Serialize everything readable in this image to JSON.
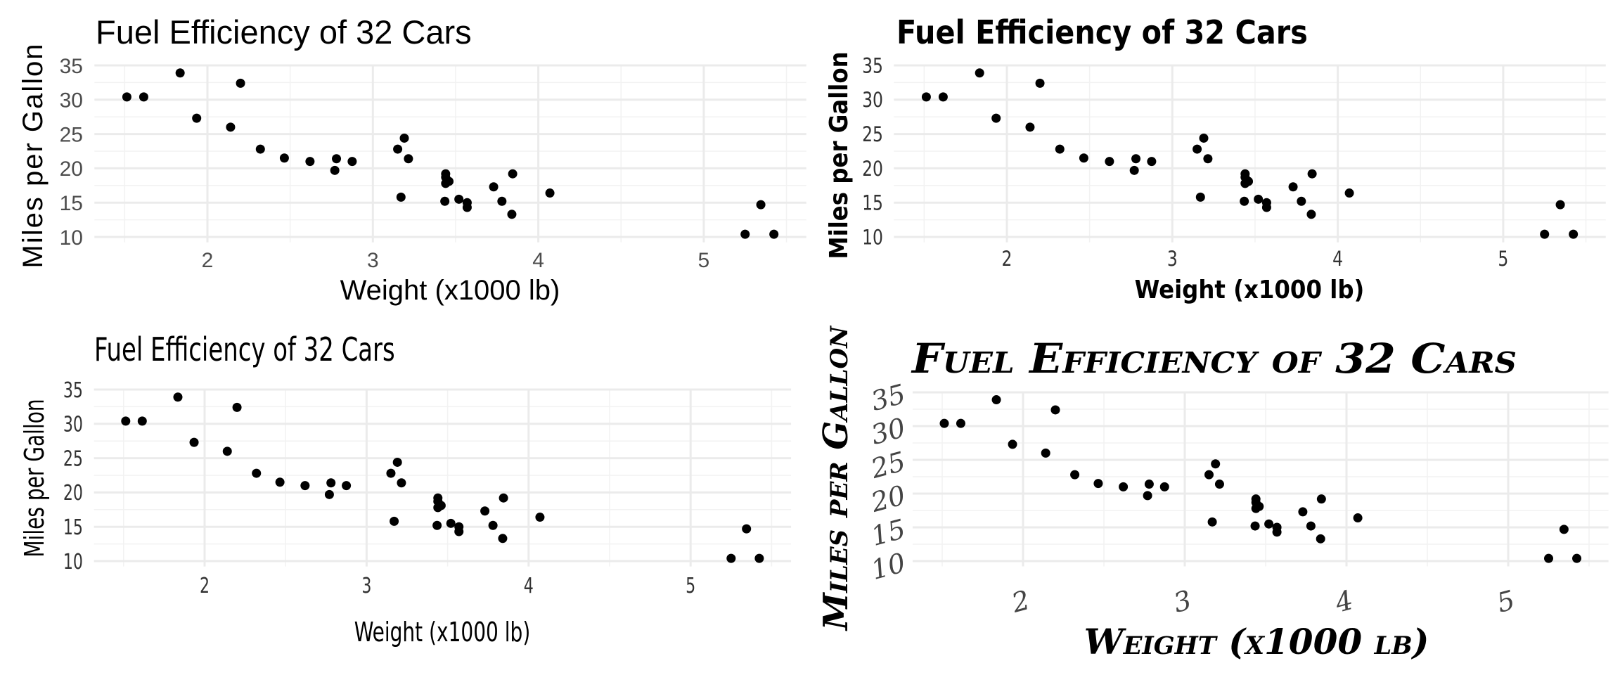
{
  "chart_data": [
    {
      "type": "scatter",
      "title": "Fuel Efficiency of 32 Cars",
      "xlabel": "Weight (x1000 lb)",
      "ylabel": "Miles per Gallon",
      "xticks": [
        2,
        3,
        4,
        5
      ],
      "yticks": [
        10,
        15,
        20,
        25,
        30,
        35
      ],
      "xlim": [
        1.317,
        5.62
      ],
      "ylim": [
        9.225,
        35.075
      ],
      "grid": true,
      "legend": "none",
      "x": [
        2.62,
        2.875,
        2.32,
        3.215,
        3.44,
        3.46,
        3.57,
        3.19,
        3.15,
        3.44,
        3.44,
        4.07,
        3.73,
        3.78,
        5.25,
        5.424,
        5.345,
        2.2,
        1.615,
        1.835,
        2.465,
        3.52,
        3.435,
        3.84,
        3.845,
        1.935,
        2.14,
        1.513,
        3.17,
        2.77,
        3.57,
        2.78
      ],
      "y": [
        21.0,
        21.0,
        22.8,
        21.4,
        18.7,
        18.1,
        14.3,
        24.4,
        22.8,
        19.2,
        17.8,
        16.4,
        17.3,
        15.2,
        10.4,
        10.4,
        14.7,
        32.4,
        30.4,
        33.9,
        21.5,
        15.5,
        15.2,
        13.3,
        19.2,
        27.3,
        26.0,
        30.4,
        15.8,
        19.7,
        15.0,
        21.4
      ]
    },
    {
      "type": "scatter",
      "title": "Fuel Efficiency of 32 Cars",
      "xlabel": "Weight (x1000 lb)",
      "ylabel": "Miles per Gallon",
      "xticks": [
        2,
        3,
        4,
        5
      ],
      "yticks": [
        10,
        15,
        20,
        25,
        30,
        35
      ],
      "xlim": [
        1.317,
        5.62
      ],
      "ylim": [
        9.225,
        35.075
      ],
      "grid": true,
      "legend": "none",
      "x": [
        2.62,
        2.875,
        2.32,
        3.215,
        3.44,
        3.46,
        3.57,
        3.19,
        3.15,
        3.44,
        3.44,
        4.07,
        3.73,
        3.78,
        5.25,
        5.424,
        5.345,
        2.2,
        1.615,
        1.835,
        2.465,
        3.52,
        3.435,
        3.84,
        3.845,
        1.935,
        2.14,
        1.513,
        3.17,
        2.77,
        3.57,
        2.78
      ],
      "y": [
        21.0,
        21.0,
        22.8,
        21.4,
        18.7,
        18.1,
        14.3,
        24.4,
        22.8,
        19.2,
        17.8,
        16.4,
        17.3,
        15.2,
        10.4,
        10.4,
        14.7,
        32.4,
        30.4,
        33.9,
        21.5,
        15.5,
        15.2,
        13.3,
        19.2,
        27.3,
        26.0,
        30.4,
        15.8,
        19.7,
        15.0,
        21.4
      ]
    },
    {
      "type": "scatter",
      "title": "Fuel Efficiency of 32 Cars",
      "xlabel": "Weight (x1000 lb)",
      "ylabel": "Miles per Gallon",
      "xticks": [
        2,
        3,
        4,
        5
      ],
      "yticks": [
        10,
        15,
        20,
        25,
        30,
        35
      ],
      "xlim": [
        1.317,
        5.62
      ],
      "ylim": [
        9.225,
        35.075
      ],
      "grid": true,
      "legend": "none",
      "x": [
        2.62,
        2.875,
        2.32,
        3.215,
        3.44,
        3.46,
        3.57,
        3.19,
        3.15,
        3.44,
        3.44,
        4.07,
        3.73,
        3.78,
        5.25,
        5.424,
        5.345,
        2.2,
        1.615,
        1.835,
        2.465,
        3.52,
        3.435,
        3.84,
        3.845,
        1.935,
        2.14,
        1.513,
        3.17,
        2.77,
        3.57,
        2.78
      ],
      "y": [
        21.0,
        21.0,
        22.8,
        21.4,
        18.7,
        18.1,
        14.3,
        24.4,
        22.8,
        19.2,
        17.8,
        16.4,
        17.3,
        15.2,
        10.4,
        10.4,
        14.7,
        32.4,
        30.4,
        33.9,
        21.5,
        15.5,
        15.2,
        13.3,
        19.2,
        27.3,
        26.0,
        30.4,
        15.8,
        19.7,
        15.0,
        21.4
      ]
    },
    {
      "type": "scatter",
      "title": "Fuel Efficiency of 32 Cars",
      "xlabel": "Weight (x1000 lb)",
      "ylabel": "Miles per Gallon",
      "xticks": [
        2,
        3,
        4,
        5
      ],
      "yticks": [
        10,
        15,
        20,
        25,
        30,
        35
      ],
      "xlim": [
        1.317,
        5.62
      ],
      "ylim": [
        9.225,
        35.075
      ],
      "grid": true,
      "legend": "none",
      "x": [
        2.62,
        2.875,
        2.32,
        3.215,
        3.44,
        3.46,
        3.57,
        3.19,
        3.15,
        3.44,
        3.44,
        4.07,
        3.73,
        3.78,
        5.25,
        5.424,
        5.345,
        2.2,
        1.615,
        1.835,
        2.465,
        3.52,
        3.435,
        3.84,
        3.845,
        1.935,
        2.14,
        1.513,
        3.17,
        2.77,
        3.57,
        2.78
      ],
      "y": [
        21.0,
        21.0,
        22.8,
        21.4,
        18.7,
        18.1,
        14.3,
        24.4,
        22.8,
        19.2,
        17.8,
        16.4,
        17.3,
        15.2,
        10.4,
        10.4,
        14.7,
        32.4,
        30.4,
        33.9,
        21.5,
        15.5,
        15.2,
        13.3,
        19.2,
        27.3,
        26.0,
        30.4,
        15.8,
        19.7,
        15.0,
        21.4
      ]
    }
  ],
  "colors": {
    "point": "#000000",
    "grid_major": "#ebebeb",
    "grid_minor": "#f2f2f2",
    "tick_text": "#4d4d4d"
  }
}
